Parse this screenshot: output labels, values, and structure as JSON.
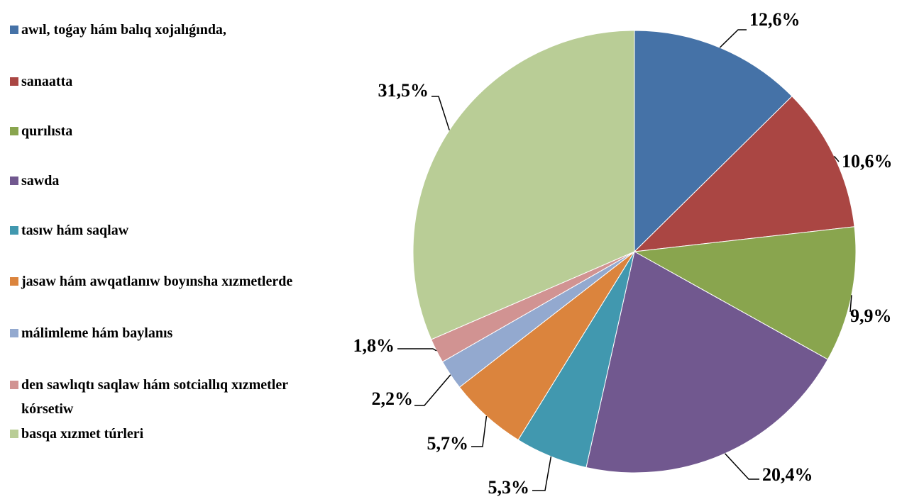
{
  "chart_data": {
    "type": "pie",
    "categories": [
      "awıl, toǵay hám balıq xojalıǵında,",
      "sanaatta",
      "qurılısta",
      "sawda",
      "tasıw hám saqlaw",
      "jasaw hám awqatlanıw  boyınsha xızmetlerde",
      "málimleme hám baylanıs",
      "den sawlıqtı saqlaw hám sotciallıq xızmetler kórsetiw",
      "basqa xızmet túrleri"
    ],
    "values": [
      12.6,
      10.6,
      9.9,
      20.4,
      5.3,
      5.7,
      2.2,
      1.8,
      31.5
    ],
    "value_labels": [
      "12,6%",
      "10,6%",
      "9,9%",
      "20,4%",
      "5,3%",
      "5,7%",
      "2,2%",
      "1,8%",
      "31,5%"
    ],
    "colors": [
      "#4572a7",
      "#aa4643",
      "#89a54e",
      "#71588f",
      "#4198af",
      "#db843d",
      "#93a9cf",
      "#d19392",
      "#b9cd96"
    ],
    "legend": "left"
  }
}
